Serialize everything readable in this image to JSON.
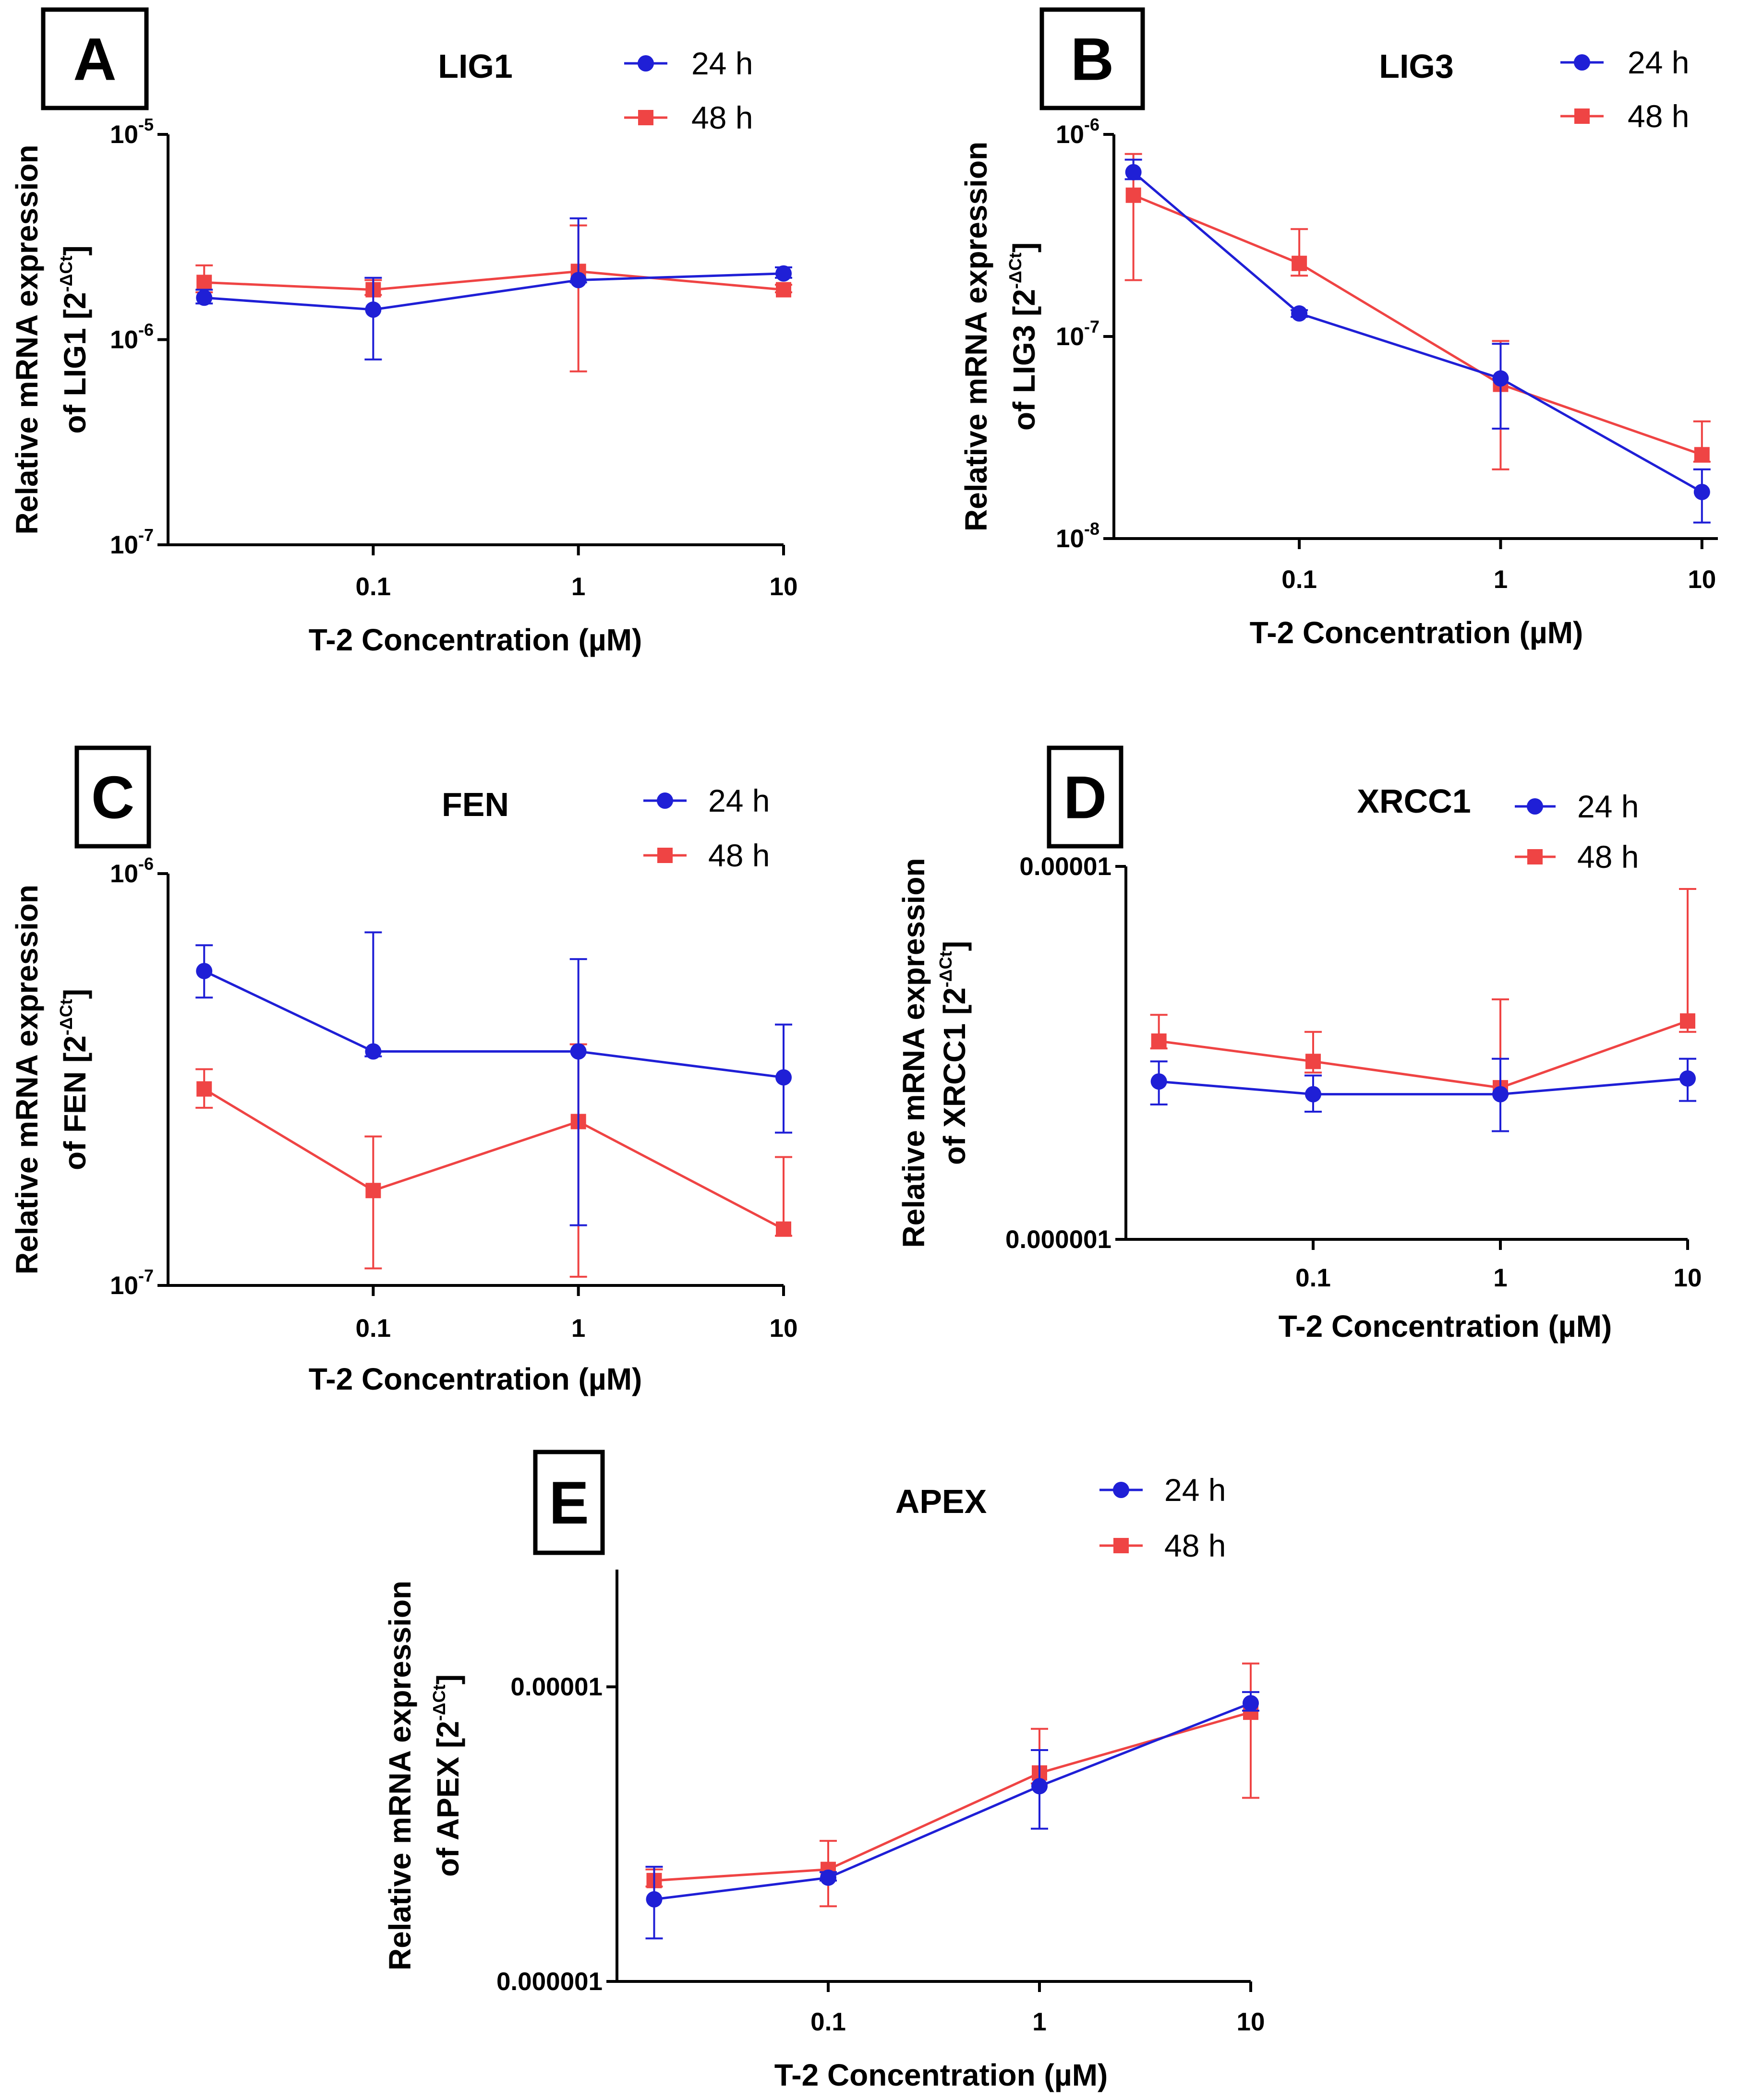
{
  "colors": {
    "series_24h": "#1f1fd6",
    "series_48h": "#ef4444",
    "axis": "#000000"
  },
  "x_tick_labels": [
    "0.1",
    "1",
    "10"
  ],
  "chart_data": [
    {
      "panel": "A",
      "type": "line",
      "title": "LIG1",
      "xlabel": "T-2 Concentration (µM)",
      "ylabel_line1": "Relative mRNA expression",
      "ylabel_line2_prefix": "of LIG1 [2",
      "ylabel_exp": "-ΔCt",
      "ylabel_close": "]",
      "xscale": "log",
      "x": [
        0.015,
        0.1,
        1,
        10
      ],
      "yscale": "log",
      "ylim": [
        1e-07,
        1e-05
      ],
      "y_ticks": [
        {
          "value": 1e-05,
          "base": "10",
          "exp": "-5"
        },
        {
          "value": 1e-06,
          "base": "10",
          "exp": "-6"
        },
        {
          "value": 1e-07,
          "base": "10",
          "exp": "-7"
        }
      ],
      "series": [
        {
          "name": "24 h",
          "marker": "circle",
          "values": [
            1.6e-06,
            1.4e-06,
            1.95e-06,
            2.1e-06
          ],
          "err_low": [
            1.5e-06,
            8e-07,
            1.9e-06,
            2e-06
          ],
          "err_high": [
            1.75e-06,
            2e-06,
            3.9e-06,
            2.25e-06
          ]
        },
        {
          "name": "48 h",
          "marker": "square",
          "values": [
            1.9e-06,
            1.75e-06,
            2.15e-06,
            1.75e-06
          ],
          "err_low": [
            1.7e-06,
            1.65e-06,
            7e-07,
            1.7e-06
          ],
          "err_high": [
            2.3e-06,
            1.95e-06,
            3.6e-06,
            1.85e-06
          ]
        }
      ]
    },
    {
      "panel": "B",
      "type": "line",
      "title": "LIG3",
      "xlabel": "T-2 Concentration (µM)",
      "ylabel_line1": "Relative mRNA expression",
      "ylabel_line2_prefix": "of LIG3 [2",
      "ylabel_exp": "-ΔCt",
      "ylabel_close": "]",
      "xscale": "log",
      "x": [
        0.015,
        0.1,
        1,
        10
      ],
      "yscale": "log",
      "ylim": [
        1e-08,
        1e-06
      ],
      "y_ticks": [
        {
          "value": 1e-06,
          "base": "10",
          "exp": "-6"
        },
        {
          "value": 1e-07,
          "base": "10",
          "exp": "-7"
        },
        {
          "value": 1e-08,
          "base": "10",
          "exp": "-8"
        }
      ],
      "series": [
        {
          "name": "24 h",
          "marker": "circle",
          "values": [
            6.5e-07,
            1.3e-07,
            6.2e-08,
            1.7e-08
          ],
          "err_low": [
            6e-07,
            1.25e-07,
            3.5e-08,
            1.2e-08
          ],
          "err_high": [
            7.5e-07,
            1.35e-07,
            9.2e-08,
            2.2e-08
          ]
        },
        {
          "name": "48 h",
          "marker": "square",
          "values": [
            5e-07,
            2.3e-07,
            5.8e-08,
            2.6e-08
          ],
          "err_low": [
            1.9e-07,
            2e-07,
            2.2e-08,
            2.4e-08
          ],
          "err_high": [
            8e-07,
            3.4e-07,
            9.5e-08,
            3.8e-08
          ]
        }
      ]
    },
    {
      "panel": "C",
      "type": "line",
      "title": "FEN",
      "xlabel": "T-2 Concentration (µM)",
      "ylabel_line1": "Relative mRNA expression",
      "ylabel_line2_prefix": "of FEN [2",
      "ylabel_exp": "-ΔCt",
      "ylabel_close": "]",
      "xscale": "log",
      "x": [
        0.015,
        0.1,
        1,
        10
      ],
      "yscale": "log",
      "ylim": [
        1e-07,
        1e-06
      ],
      "y_ticks": [
        {
          "value": 1e-06,
          "base": "10",
          "exp": "-6"
        },
        {
          "value": 1e-07,
          "base": "10",
          "exp": "-7"
        }
      ],
      "series": [
        {
          "name": "24 h",
          "marker": "circle",
          "values": [
            5.8e-07,
            3.7e-07,
            3.7e-07,
            3.2e-07
          ],
          "err_low": [
            5e-07,
            3.6e-07,
            1.4e-07,
            2.35e-07
          ],
          "err_high": [
            6.7e-07,
            7.2e-07,
            6.2e-07,
            4.3e-07
          ]
        },
        {
          "name": "48 h",
          "marker": "square",
          "values": [
            3e-07,
            1.7e-07,
            2.5e-07,
            1.37e-07
          ],
          "err_low": [
            2.7e-07,
            1.1e-07,
            1.05e-07,
            1.32e-07
          ],
          "err_high": [
            3.35e-07,
            2.3e-07,
            3.85e-07,
            2.05e-07
          ]
        }
      ]
    },
    {
      "panel": "D",
      "type": "line",
      "title": "XRCC1",
      "xlabel": "T-2 Concentration (µM)",
      "ylabel_line1": "Relative mRNA expression",
      "ylabel_line2_prefix": "of XRCC1 [2",
      "ylabel_exp": "-ΔCt",
      "ylabel_close": "]",
      "xscale": "log",
      "x": [
        0.015,
        0.1,
        1,
        10
      ],
      "yscale": "log",
      "ylim": [
        1e-06,
        1e-05
      ],
      "y_ticks": [
        {
          "value": 1e-05,
          "label": "0.00001"
        },
        {
          "value": 1e-06,
          "label": "0.000001"
        }
      ],
      "series": [
        {
          "name": "24 h",
          "marker": "circle",
          "values": [
            2.65e-06,
            2.45e-06,
            2.45e-06,
            2.7e-06
          ],
          "err_low": [
            2.3e-06,
            2.2e-06,
            1.95e-06,
            2.35e-06
          ],
          "err_high": [
            3e-06,
            2.75e-06,
            3.05e-06,
            3.05e-06
          ]
        },
        {
          "name": "48 h",
          "marker": "square",
          "values": [
            3.4e-06,
            3e-06,
            2.55e-06,
            3.85e-06
          ],
          "err_low": [
            3.25e-06,
            2.8e-06,
            2.45e-06,
            3.6e-06
          ],
          "err_high": [
            4e-06,
            3.6e-06,
            4.4e-06,
            8.7e-06
          ]
        }
      ]
    },
    {
      "panel": "E",
      "type": "line",
      "title": "APEX",
      "xlabel": "T-2 Concentration (µM)",
      "ylabel_line1": "Relative mRNA expression",
      "ylabel_line2_prefix": "of APEX [2",
      "ylabel_exp": "-ΔCt",
      "ylabel_close": "]",
      "xscale": "log",
      "x": [
        0.015,
        0.1,
        1,
        10
      ],
      "yscale": "log",
      "ylim": [
        1e-06,
        2.5e-05
      ],
      "y_ticks": [
        {
          "value": 1e-05,
          "label": "0.00001"
        },
        {
          "value": 1e-06,
          "label": "0.000001"
        }
      ],
      "series": [
        {
          "name": "24 h",
          "marker": "circle",
          "values": [
            1.9e-06,
            2.25e-06,
            4.6e-06,
            8.8e-06
          ],
          "err_low": [
            1.4e-06,
            2.2e-06,
            3.3e-06,
            8.3e-06
          ],
          "err_high": [
            2.45e-06,
            2.35e-06,
            6.1e-06,
            9.6e-06
          ]
        },
        {
          "name": "48 h",
          "marker": "square",
          "values": [
            2.2e-06,
            2.4e-06,
            5.1e-06,
            8.2e-06
          ],
          "err_low": [
            2.1e-06,
            1.8e-06,
            4.7e-06,
            4.2e-06
          ],
          "err_high": [
            2.4e-06,
            3e-06,
            7.2e-06,
            1.2e-05
          ]
        }
      ]
    }
  ]
}
